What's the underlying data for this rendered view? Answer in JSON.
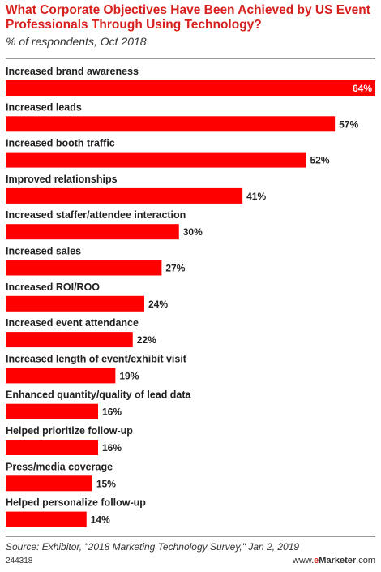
{
  "title": "What Corporate Objectives Have Been Achieved by US Event Professionals Through Using Technology?",
  "subtitle": "% of respondents, Oct 2018",
  "source": "Source: Exhibitor, \"2018 Marketing Technology Survey,\" Jan 2, 2019",
  "chart_id": "244318",
  "credit": {
    "prefix": "www.",
    "brand_e": "e",
    "brand_rest": "Marketer",
    "suffix": ".com"
  },
  "colors": {
    "bar": "#ff0000",
    "title": "#d6211e"
  },
  "chart_data": {
    "type": "bar",
    "orientation": "horizontal",
    "categories": [
      "Increased brand awareness",
      "Increased leads",
      "Increased booth traffic",
      "Improved relationships",
      "Increased staffer/attendee interaction",
      "Increased sales",
      "Increased ROI/ROO",
      "Increased event attendance",
      "Increased length of event/exhibit visit",
      "Enhanced quantity/quality of lead data",
      "Helped prioritize follow-up",
      "Press/media coverage",
      "Helped personalize follow-up"
    ],
    "values": [
      64,
      57,
      52,
      41,
      30,
      27,
      24,
      22,
      19,
      16,
      16,
      15,
      14
    ],
    "value_suffix": "%",
    "xlim": [
      0,
      64
    ],
    "grid": false,
    "legend": "none"
  }
}
